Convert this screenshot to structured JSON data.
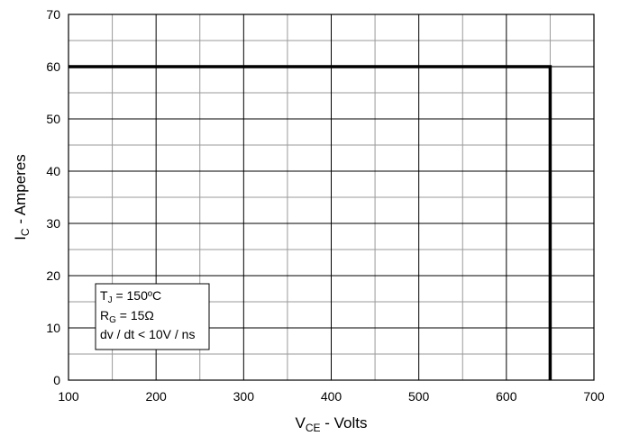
{
  "chart_data": {
    "type": "line",
    "title": "",
    "xlabel": {
      "main": "V",
      "sub": "CE",
      "suffix": " - Volts"
    },
    "ylabel": {
      "main": "I",
      "sub": "C",
      "suffix": " - Amperes"
    },
    "xlim": [
      100,
      700
    ],
    "ylim": [
      0,
      70
    ],
    "x_major_ticks": [
      100,
      200,
      300,
      400,
      500,
      600,
      700
    ],
    "x_minor_ticks": [
      150,
      250,
      350,
      450,
      550,
      650
    ],
    "y_major_ticks": [
      0,
      10,
      20,
      30,
      40,
      50,
      60,
      70
    ],
    "y_minor_ticks": [
      5,
      15,
      25,
      35,
      45,
      55,
      65
    ],
    "grid": true,
    "series": [
      {
        "name": "",
        "color": "#000000",
        "x": [
          100,
          650,
          650
        ],
        "y": [
          60,
          60,
          0
        ]
      }
    ],
    "annotation": {
      "placement": "bottom-left",
      "lines": [
        {
          "main": "T",
          "sub": "J",
          "suffix": " = 150ºC"
        },
        {
          "main": "R",
          "sub": "G",
          "suffix": " = 15Ω"
        },
        {
          "main": "dv / dt < 10V / ns",
          "sub": "",
          "suffix": ""
        }
      ]
    }
  }
}
